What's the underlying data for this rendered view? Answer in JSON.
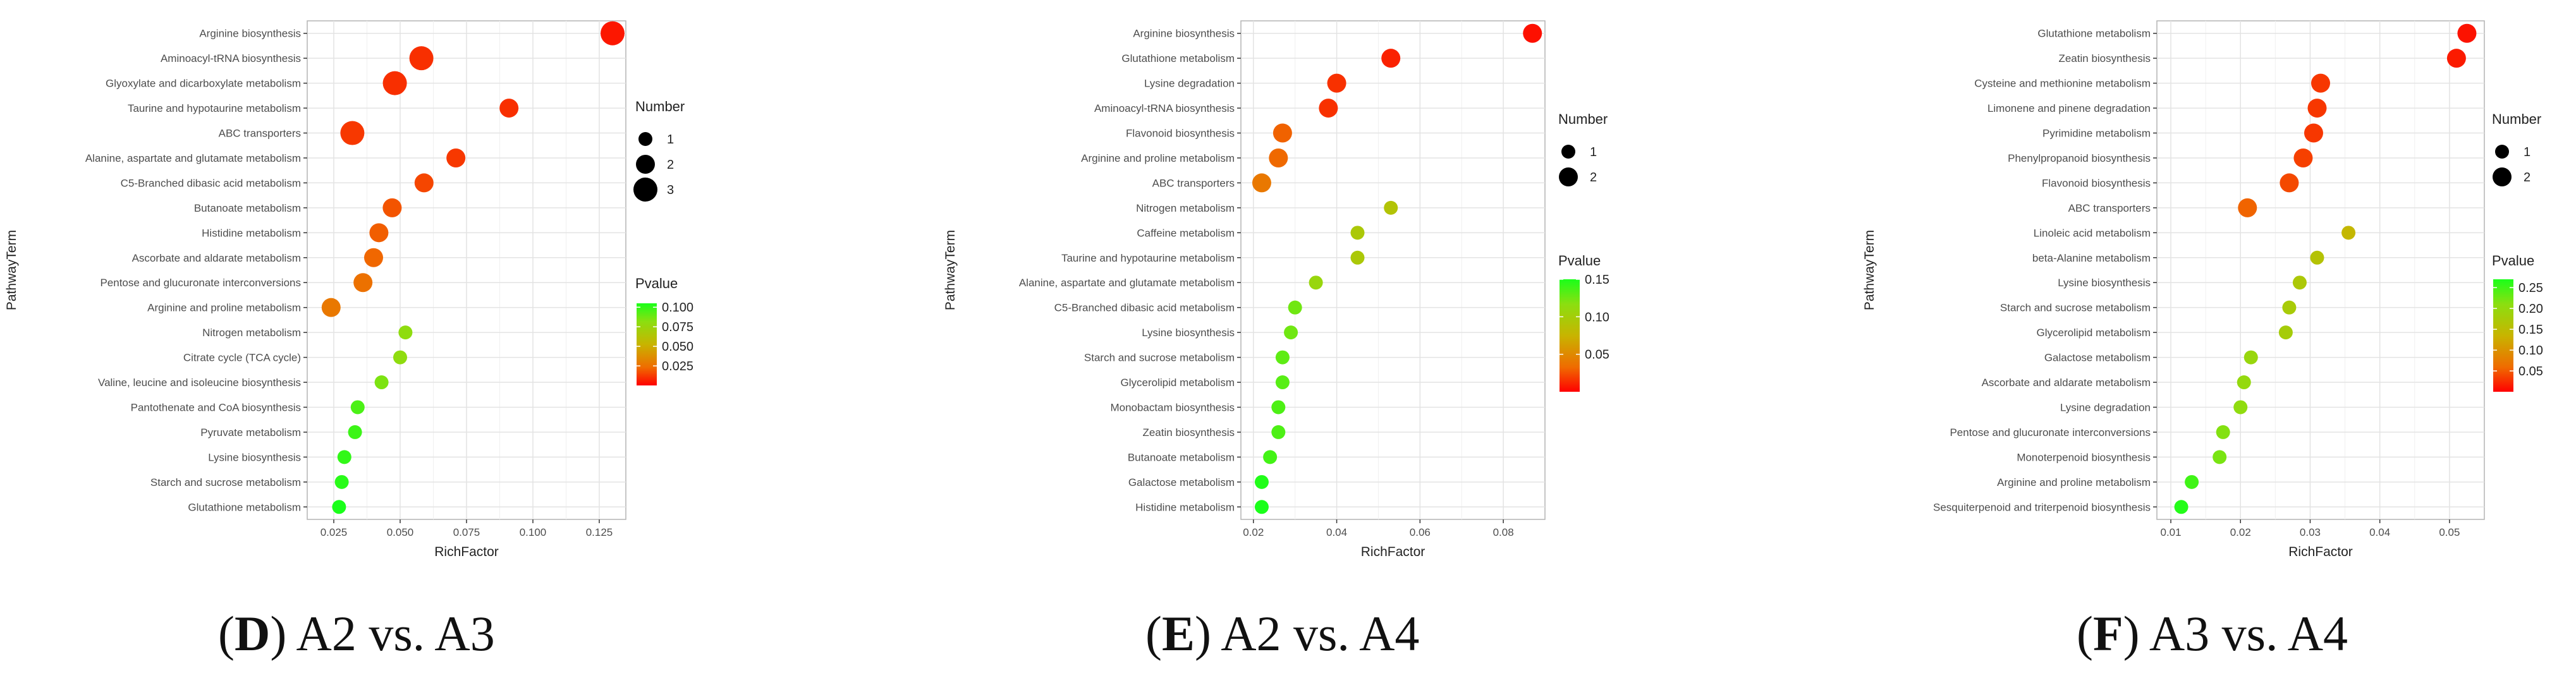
{
  "chart_data": [
    {
      "type": "scatter",
      "panel_letter": "D",
      "panel_caption": "A2 vs. A3",
      "xlabel": "RichFactor",
      "ylabel": "PathwayTerm",
      "xlim": [
        0.015,
        0.135
      ],
      "xticks": [
        0.025,
        0.05,
        0.075,
        0.1,
        0.125
      ],
      "xtick_labels": [
        "0.025",
        "0.050",
        "0.075",
        "0.100",
        "0.125"
      ],
      "size_legend_title": "Number",
      "size_legend": [
        1,
        2,
        3
      ],
      "color_legend_title": "Pvalue",
      "color_range": [
        0.0,
        0.105
      ],
      "color_ticks": [
        0.025,
        0.05,
        0.075,
        0.1
      ],
      "color_tick_labels": [
        "0.025",
        "0.050",
        "0.075",
        "0.100"
      ],
      "terms": [
        "Arginine biosynthesis",
        "Aminoacyl-tRNA biosynthesis",
        "Glyoxylate and dicarboxylate metabolism",
        "Taurine and hypotaurine metabolism",
        "ABC transporters",
        "Alanine, aspartate and glutamate metabolism",
        "C5-Branched dibasic acid metabolism",
        "Butanoate metabolism",
        "Histidine metabolism",
        "Ascorbate and aldarate metabolism",
        "Pentose and glucuronate interconversions",
        "Arginine and proline metabolism",
        "Nitrogen metabolism",
        "Citrate cycle (TCA cycle)",
        "Valine, leucine and isoleucine biosynthesis",
        "Pantothenate and CoA biosynthesis",
        "Pyruvate metabolism",
        "Lysine biosynthesis",
        "Starch and sucrose metabolism",
        "Glutathione metabolism"
      ],
      "rich_factor": [
        0.13,
        0.058,
        0.048,
        0.091,
        0.032,
        0.071,
        0.059,
        0.047,
        0.042,
        0.04,
        0.036,
        0.024,
        0.052,
        0.05,
        0.043,
        0.034,
        0.033,
        0.029,
        0.028,
        0.027
      ],
      "number": [
        3,
        3,
        3,
        2,
        3,
        2,
        2,
        2,
        2,
        2,
        2,
        2,
        1,
        1,
        1,
        1,
        1,
        1,
        1,
        1
      ],
      "pvalue": [
        0.005,
        0.01,
        0.01,
        0.01,
        0.012,
        0.012,
        0.015,
        0.018,
        0.02,
        0.022,
        0.025,
        0.028,
        0.08,
        0.08,
        0.085,
        0.095,
        0.098,
        0.1,
        0.102,
        0.105
      ]
    },
    {
      "type": "scatter",
      "panel_letter": "E",
      "panel_caption": "A2 vs. A4",
      "xlabel": "RichFactor",
      "ylabel": "PathwayTerm",
      "xlim": [
        0.017,
        0.09
      ],
      "xticks": [
        0.02,
        0.04,
        0.06,
        0.08
      ],
      "xtick_labels": [
        "0.02",
        "0.04",
        "0.06",
        "0.08"
      ],
      "size_legend_title": "Number",
      "size_legend": [
        1,
        2
      ],
      "color_legend_title": "Pvalue",
      "color_range": [
        0.0,
        0.15
      ],
      "color_ticks": [
        0.05,
        0.1,
        0.15
      ],
      "color_tick_labels": [
        "0.05",
        "0.10",
        "0.15"
      ],
      "terms": [
        "Arginine biosynthesis",
        "Glutathione metabolism",
        "Lysine degradation",
        "Aminoacyl-tRNA biosynthesis",
        "Flavonoid biosynthesis",
        "Arginine and proline metabolism",
        "ABC transporters",
        "Nitrogen metabolism",
        "Caffeine metabolism",
        "Taurine and hypotaurine metabolism",
        "Alanine, aspartate and glutamate metabolism",
        "C5-Branched dibasic acid metabolism",
        "Lysine biosynthesis",
        "Starch and sucrose metabolism",
        "Glycerolipid metabolism",
        "Monobactam biosynthesis",
        "Zeatin biosynthesis",
        "Butanoate metabolism",
        "Galactose metabolism",
        "Histidine metabolism"
      ],
      "rich_factor": [
        0.087,
        0.053,
        0.04,
        0.038,
        0.027,
        0.026,
        0.022,
        0.053,
        0.045,
        0.045,
        0.035,
        0.03,
        0.029,
        0.027,
        0.027,
        0.026,
        0.026,
        0.024,
        0.022,
        0.022
      ],
      "number": [
        2,
        2,
        2,
        2,
        2,
        2,
        2,
        1,
        1,
        1,
        1,
        1,
        1,
        1,
        1,
        1,
        1,
        1,
        1,
        1
      ],
      "pvalue": [
        0.005,
        0.01,
        0.015,
        0.015,
        0.03,
        0.032,
        0.04,
        0.09,
        0.095,
        0.095,
        0.108,
        0.125,
        0.125,
        0.13,
        0.132,
        0.135,
        0.135,
        0.138,
        0.148,
        0.15
      ]
    },
    {
      "type": "scatter",
      "panel_letter": "F",
      "panel_caption": "A3 vs. A4",
      "xlabel": "RichFactor",
      "ylabel": "PathwayTerm",
      "xlim": [
        0.008,
        0.055
      ],
      "xticks": [
        0.01,
        0.02,
        0.03,
        0.04,
        0.05
      ],
      "xtick_labels": [
        "0.01",
        "0.02",
        "0.03",
        "0.04",
        "0.05"
      ],
      "size_legend_title": "Number",
      "size_legend": [
        1,
        2
      ],
      "color_legend_title": "Pvalue",
      "color_range": [
        0.0,
        0.27
      ],
      "color_ticks": [
        0.05,
        0.1,
        0.15,
        0.2,
        0.25
      ],
      "color_tick_labels": [
        "0.05",
        "0.10",
        "0.15",
        "0.20",
        "0.25"
      ],
      "terms": [
        "Glutathione metabolism",
        "Zeatin biosynthesis",
        "Cysteine and methionine metabolism",
        "Limonene and pinene degradation",
        "Pyrimidine metabolism",
        "Phenylpropanoid biosynthesis",
        "Flavonoid biosynthesis",
        "ABC transporters",
        "Linoleic acid metabolism",
        "beta-Alanine metabolism",
        "Lysine biosynthesis",
        "Starch and sucrose metabolism",
        "Glycerolipid metabolism",
        "Galactose metabolism",
        "Ascorbate and aldarate metabolism",
        "Lysine degradation",
        "Pentose and glucuronate interconversions",
        "Monoterpenoid biosynthesis",
        "Arginine and proline metabolism",
        "Sesquiterpenoid and triterpenoid biosynthesis"
      ],
      "rich_factor": [
        0.0525,
        0.051,
        0.0315,
        0.031,
        0.0305,
        0.029,
        0.027,
        0.021,
        0.0355,
        0.031,
        0.0285,
        0.027,
        0.0265,
        0.0215,
        0.0205,
        0.02,
        0.0175,
        0.017,
        0.013,
        0.0115
      ],
      "number": [
        2,
        2,
        2,
        2,
        2,
        2,
        2,
        2,
        1,
        1,
        1,
        1,
        1,
        1,
        1,
        1,
        1,
        1,
        1,
        1
      ],
      "pvalue": [
        0.01,
        0.015,
        0.03,
        0.03,
        0.03,
        0.035,
        0.04,
        0.055,
        0.14,
        0.16,
        0.17,
        0.175,
        0.178,
        0.195,
        0.2,
        0.205,
        0.215,
        0.22,
        0.25,
        0.265
      ]
    }
  ]
}
